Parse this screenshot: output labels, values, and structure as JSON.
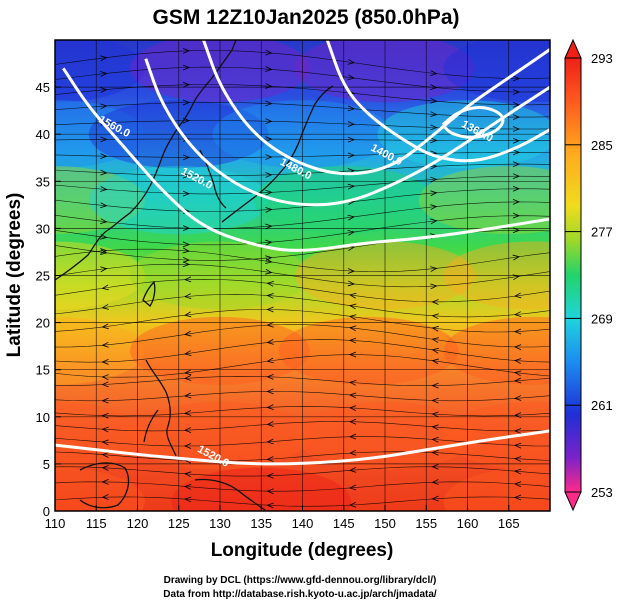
{
  "chart_data": {
    "type": "heatmap",
    "title": "GSM 12Z10Jan2025 (850.0hPa)",
    "xlabel": "Longitude (degrees)",
    "ylabel": "Latitude  (degrees)",
    "xlim": [
      110,
      170
    ],
    "ylim": [
      0,
      50
    ],
    "grid": true,
    "x_ticks": [
      "110",
      "115",
      "120",
      "125",
      "130",
      "135",
      "140",
      "145",
      "150",
      "155",
      "160",
      "165"
    ],
    "y_ticks": [
      "0",
      "5",
      "10",
      "15",
      "20",
      "25",
      "30",
      "35",
      "40",
      "45"
    ],
    "colorbar": {
      "range": [
        253,
        293
      ],
      "tick_labels": [
        "293",
        "285",
        "277",
        "269",
        "261",
        "253"
      ],
      "tick_values": [
        293,
        285,
        277,
        269,
        261,
        253
      ],
      "colors": [
        "#ff2a8a",
        "#7a22c8",
        "#1f2fd8",
        "#1c8df0",
        "#1fd4dc",
        "#22d46a",
        "#9ed82a",
        "#f0dc1e",
        "#ffaa1e",
        "#ff5a1e",
        "#ee2018"
      ]
    },
    "contours": [
      {
        "label": "1560.0",
        "points": [
          [
            111,
            47
          ],
          [
            114,
            43
          ],
          [
            117,
            40
          ],
          [
            120,
            37
          ],
          [
            123,
            34
          ],
          [
            128,
            30
          ],
          [
            135,
            28
          ],
          [
            140,
            27.5
          ],
          [
            148,
            28.5
          ],
          [
            155,
            29
          ],
          [
            163,
            30
          ],
          [
            170,
            31
          ]
        ]
      },
      {
        "label": "1520.0",
        "points": [
          [
            121,
            48
          ],
          [
            123,
            43
          ],
          [
            127,
            38
          ],
          [
            132,
            34.5
          ],
          [
            138,
            32.5
          ],
          [
            145,
            32.5
          ],
          [
            152,
            35
          ],
          [
            158,
            38
          ],
          [
            163,
            41
          ],
          [
            170,
            45
          ]
        ]
      },
      {
        "label": "1480.0",
        "points": [
          [
            128,
            50
          ],
          [
            130,
            45
          ],
          [
            134,
            40
          ],
          [
            139,
            37
          ],
          [
            145,
            35.5
          ],
          [
            151,
            36.5
          ],
          [
            156,
            40
          ],
          [
            160,
            43
          ],
          [
            165,
            46
          ],
          [
            170,
            49
          ]
        ]
      },
      {
        "label": "1400.0",
        "points": [
          [
            143,
            50
          ],
          [
            145,
            45
          ],
          [
            148,
            42
          ],
          [
            152,
            39.5
          ],
          [
            156,
            37.5
          ],
          [
            161,
            37
          ],
          [
            166,
            38.5
          ],
          [
            170,
            40.5
          ]
        ]
      },
      {
        "label": "1360.0",
        "points": [
          [
            157,
            41
          ],
          [
            159,
            42.5
          ],
          [
            162,
            43
          ],
          [
            164.5,
            42
          ],
          [
            164,
            40.5
          ],
          [
            161,
            39.5
          ],
          [
            158,
            40
          ],
          [
            157,
            41
          ]
        ]
      },
      {
        "label": "1520.0",
        "points": [
          [
            110,
            7
          ],
          [
            115,
            6.5
          ],
          [
            120,
            6
          ],
          [
            126,
            5.5
          ],
          [
            133,
            5
          ],
          [
            140,
            5
          ],
          [
            148,
            5.5
          ],
          [
            155,
            6.5
          ],
          [
            162,
            7.5
          ],
          [
            170,
            8.5
          ]
        ]
      }
    ],
    "contour_labels": [
      {
        "text": "1560.0",
        "x": 117,
        "y": 40.5
      },
      {
        "text": "1520.0",
        "x": 127,
        "y": 35
      },
      {
        "text": "1480.0",
        "x": 139,
        "y": 36
      },
      {
        "text": "1400.0",
        "x": 150,
        "y": 37.5
      },
      {
        "text": "1360.0",
        "x": 161,
        "y": 40
      },
      {
        "text": "1520.0",
        "x": 129,
        "y": 5.5
      }
    ],
    "temperature_field": [
      {
        "lat": 47,
        "lon": 110,
        "temp": 259
      },
      {
        "lat": 47,
        "lon": 130,
        "temp": 258
      },
      {
        "lat": 47,
        "lon": 150,
        "temp": 258
      },
      {
        "lat": 47,
        "lon": 168,
        "temp": 260
      },
      {
        "lat": 40,
        "lon": 110,
        "temp": 266
      },
      {
        "lat": 40,
        "lon": 125,
        "temp": 262
      },
      {
        "lat": 40,
        "lon": 140,
        "temp": 263
      },
      {
        "lat": 40,
        "lon": 160,
        "temp": 268
      },
      {
        "lat": 33,
        "lon": 110,
        "temp": 275
      },
      {
        "lat": 33,
        "lon": 125,
        "temp": 270
      },
      {
        "lat": 33,
        "lon": 145,
        "temp": 271
      },
      {
        "lat": 33,
        "lon": 165,
        "temp": 275
      },
      {
        "lat": 25,
        "lon": 110,
        "temp": 280
      },
      {
        "lat": 25,
        "lon": 130,
        "temp": 278
      },
      {
        "lat": 25,
        "lon": 150,
        "temp": 283
      },
      {
        "lat": 25,
        "lon": 168,
        "temp": 284
      },
      {
        "lat": 17,
        "lon": 110,
        "temp": 285
      },
      {
        "lat": 17,
        "lon": 130,
        "temp": 287
      },
      {
        "lat": 17,
        "lon": 148,
        "temp": 289
      },
      {
        "lat": 17,
        "lon": 168,
        "temp": 287
      },
      {
        "lat": 8,
        "lon": 110,
        "temp": 289
      },
      {
        "lat": 8,
        "lon": 130,
        "temp": 290
      },
      {
        "lat": 8,
        "lon": 150,
        "temp": 290
      },
      {
        "lat": 8,
        "lon": 168,
        "temp": 289
      },
      {
        "lat": 1,
        "lon": 110,
        "temp": 290
      },
      {
        "lat": 1,
        "lon": 135,
        "temp": 291
      },
      {
        "lat": 1,
        "lon": 168,
        "temp": 289
      }
    ]
  },
  "credits": {
    "line1": "Drawing by DCL (https://www.gfd-dennou.org/library/dcl/)",
    "line2": "Data from http://database.rish.kyoto-u.ac.jp/arch/jmadata/"
  }
}
